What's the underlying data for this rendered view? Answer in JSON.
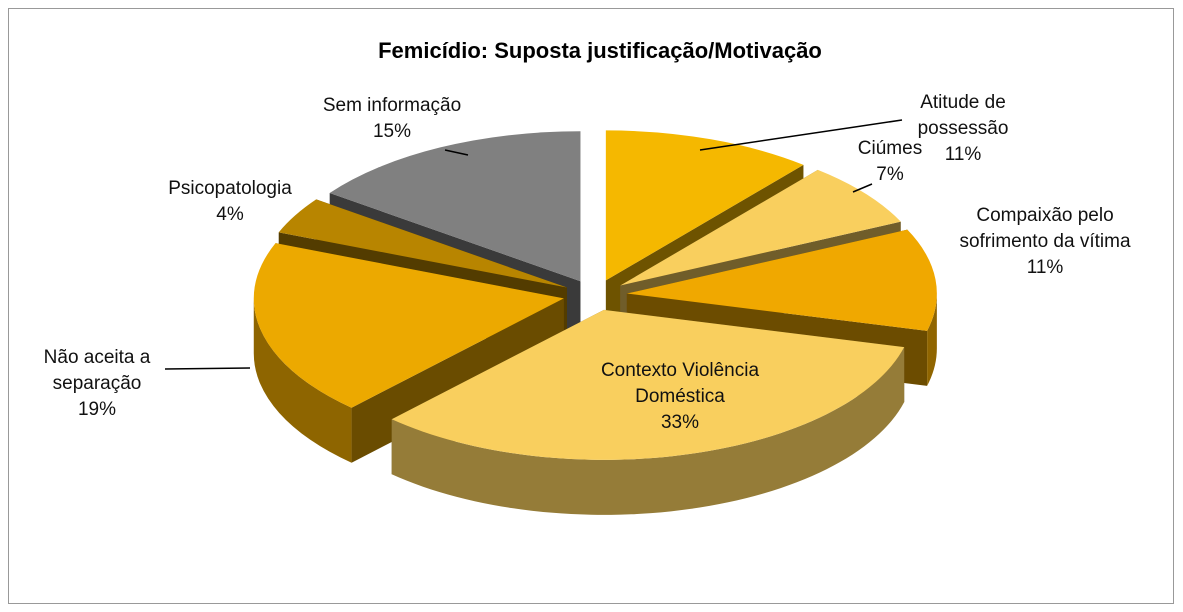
{
  "chart_data": {
    "type": "pie3d",
    "title": "Femicídio: Suposta justificação/Motivação",
    "categories": [
      "Atitude de possessão",
      "Ciúmes",
      "Compaixão pelo sofrimento da vítima",
      "Contexto Violência Doméstica",
      "Não aceita a separação",
      "Psicopatologia",
      "Sem informação"
    ],
    "values": [
      11,
      7,
      11,
      33,
      19,
      4,
      15
    ],
    "value_labels": [
      "11%",
      "7%",
      "11%",
      "33%",
      "19%",
      "4%",
      "15%"
    ],
    "colors": [
      "#f5b800",
      "#f9cf5e",
      "#f0a800",
      "#f9cf5e",
      "#eca900",
      "#b88500",
      "#808080"
    ]
  }
}
